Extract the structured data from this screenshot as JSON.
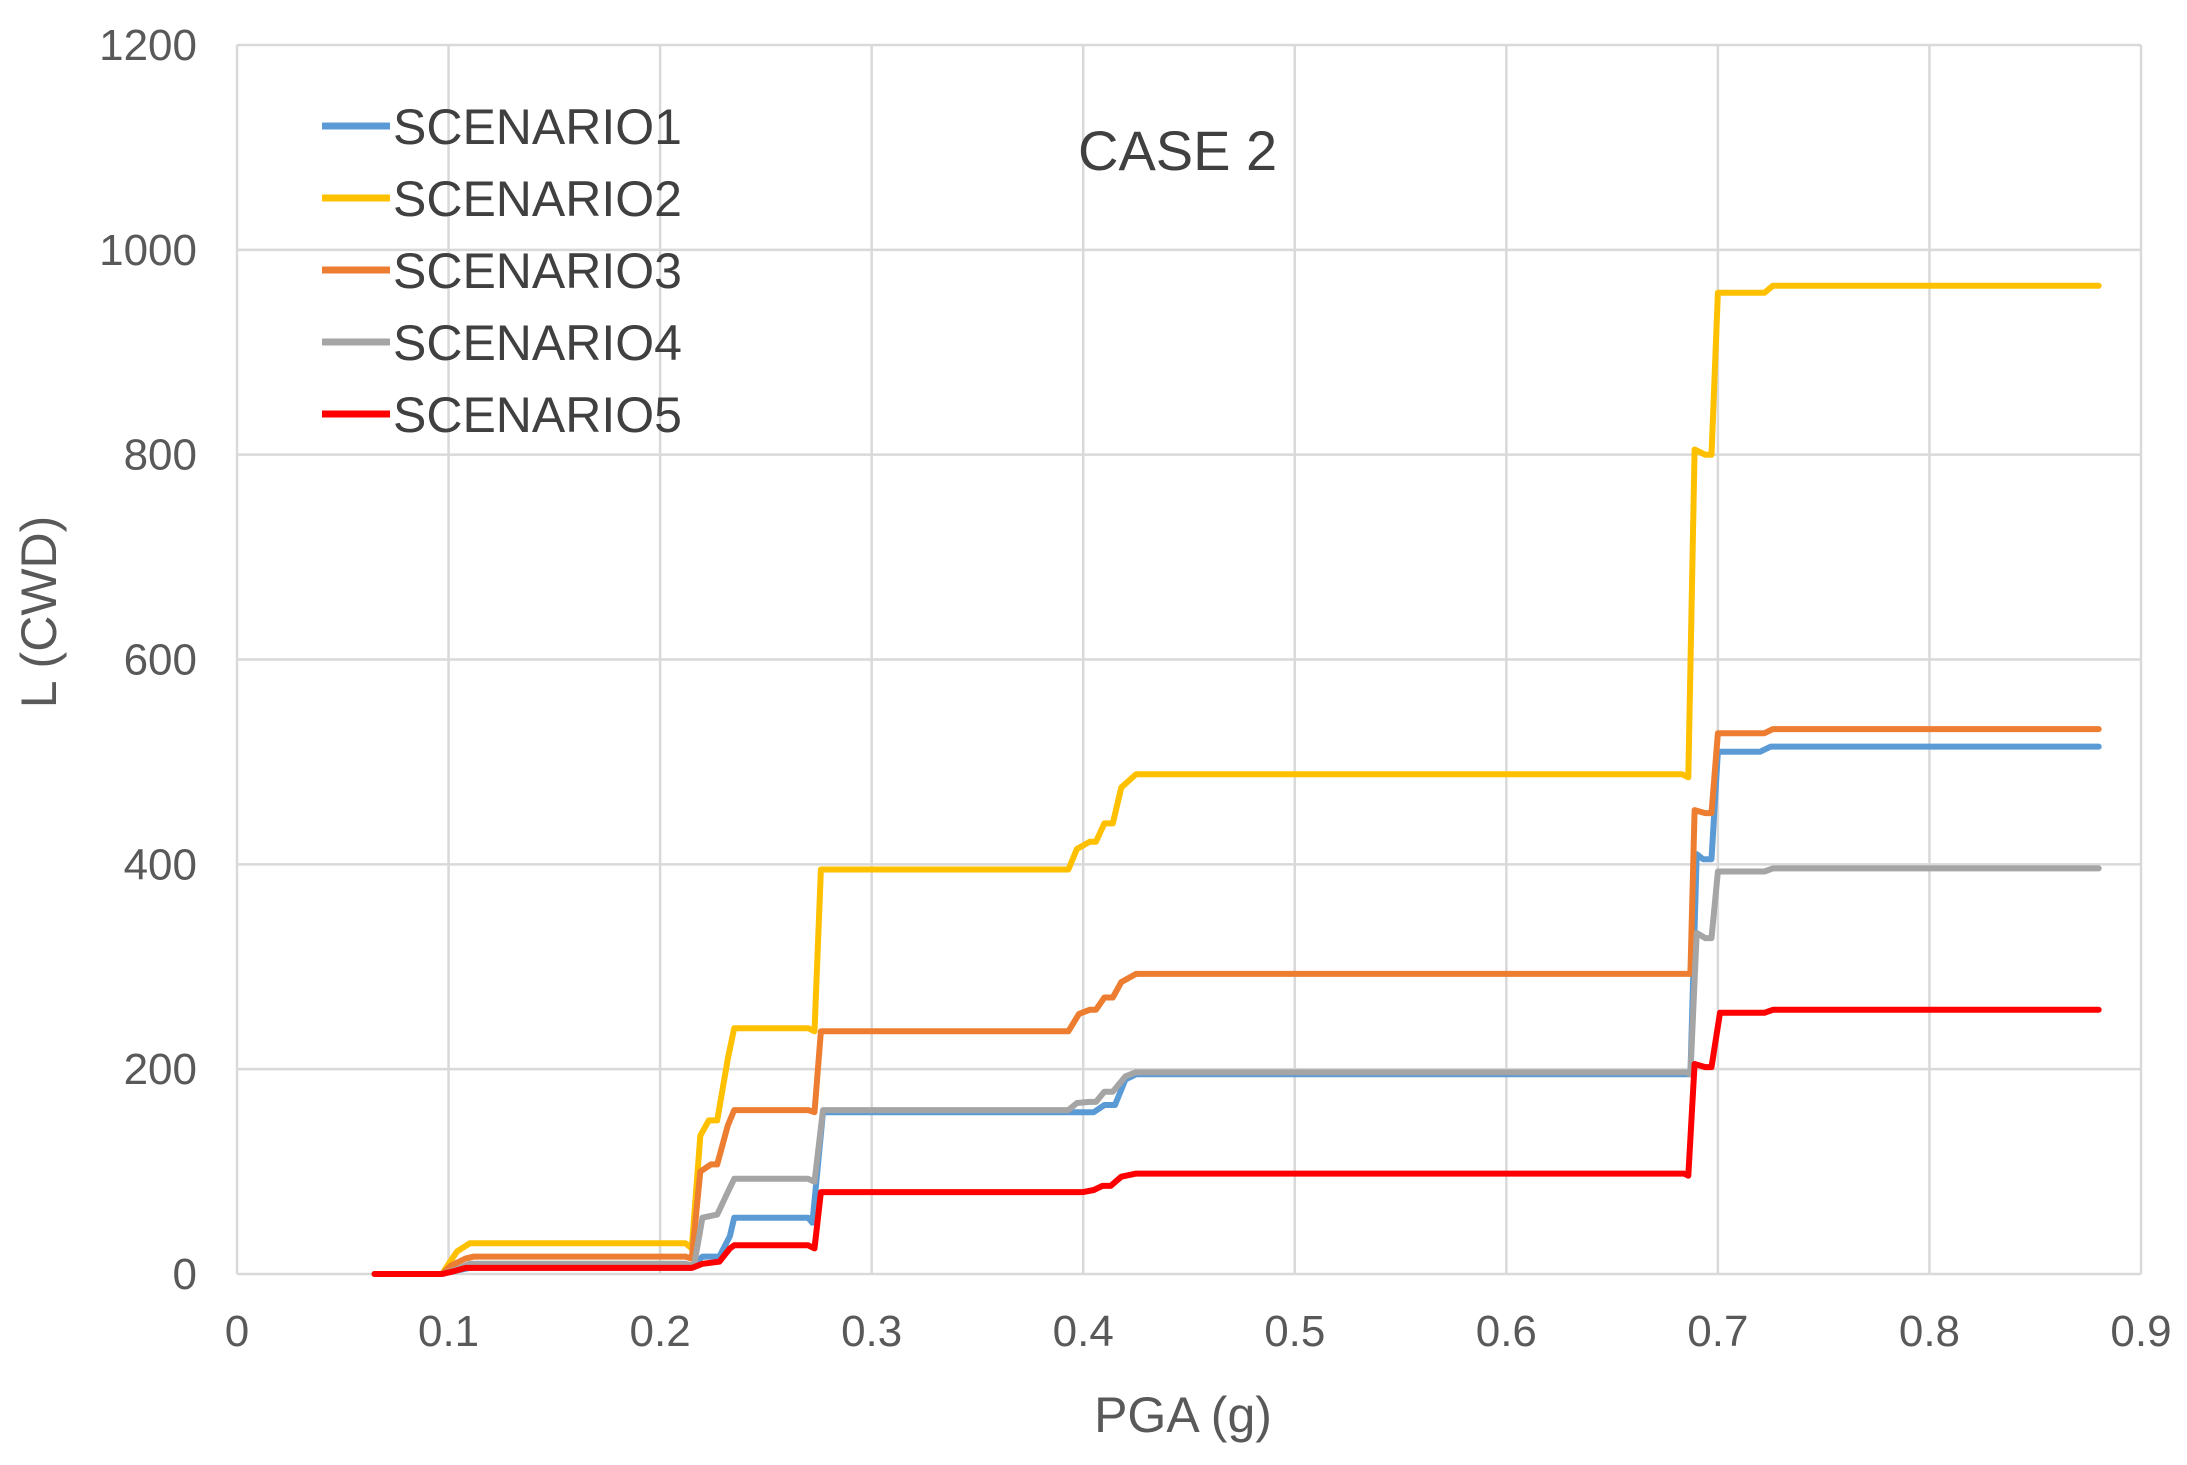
{
  "chart_data": {
    "type": "line",
    "title": "",
    "annotation": "CASE 2",
    "xlabel": "PGA (g)",
    "ylabel": "L (CWD)",
    "xlim": [
      0,
      0.9
    ],
    "ylim": [
      0,
      1200
    ],
    "xticks": [
      0,
      0.1,
      0.2,
      0.3,
      0.4,
      0.5,
      0.6,
      0.7,
      0.8,
      0.9
    ],
    "xtick_labels": [
      "0",
      "0.1",
      "0.2",
      "0.3",
      "0.4",
      "0.5",
      "0.6",
      "0.7",
      "0.8",
      "0.9"
    ],
    "yticks": [
      0,
      200,
      400,
      600,
      800,
      1000,
      1200
    ],
    "ytick_labels": [
      "0",
      "200",
      "400",
      "600",
      "800",
      "1000",
      "1200"
    ],
    "grid": true,
    "legend_position": "top-left",
    "series": [
      {
        "name": "SCENARIO1",
        "color": "#5b9bd5",
        "points": [
          [
            0.065,
            0
          ],
          [
            0.097,
            0
          ],
          [
            0.103,
            3
          ],
          [
            0.11,
            6
          ],
          [
            0.215,
            6
          ],
          [
            0.22,
            17
          ],
          [
            0.228,
            17
          ],
          [
            0.233,
            37
          ],
          [
            0.235,
            55
          ],
          [
            0.27,
            55
          ],
          [
            0.272,
            50
          ],
          [
            0.277,
            158
          ],
          [
            0.395,
            158
          ],
          [
            0.4,
            158
          ],
          [
            0.405,
            158
          ],
          [
            0.41,
            165
          ],
          [
            0.415,
            165
          ],
          [
            0.42,
            190
          ],
          [
            0.425,
            195
          ],
          [
            0.428,
            195
          ],
          [
            0.685,
            195
          ],
          [
            0.687,
            195
          ],
          [
            0.69,
            410
          ],
          [
            0.693,
            405
          ],
          [
            0.697,
            405
          ],
          [
            0.7,
            510
          ],
          [
            0.72,
            510
          ],
          [
            0.725,
            515
          ],
          [
            0.88,
            515
          ]
        ]
      },
      {
        "name": "SCENARIO2",
        "color": "#ffc000",
        "points": [
          [
            0.065,
            0
          ],
          [
            0.097,
            0
          ],
          [
            0.1,
            10
          ],
          [
            0.104,
            22
          ],
          [
            0.11,
            30
          ],
          [
            0.212,
            30
          ],
          [
            0.215,
            25
          ],
          [
            0.219,
            135
          ],
          [
            0.223,
            150
          ],
          [
            0.227,
            150
          ],
          [
            0.232,
            210
          ],
          [
            0.235,
            240
          ],
          [
            0.27,
            240
          ],
          [
            0.273,
            237
          ],
          [
            0.276,
            395
          ],
          [
            0.393,
            395
          ],
          [
            0.397,
            415
          ],
          [
            0.403,
            422
          ],
          [
            0.406,
            422
          ],
          [
            0.41,
            440
          ],
          [
            0.414,
            440
          ],
          [
            0.418,
            475
          ],
          [
            0.425,
            488
          ],
          [
            0.683,
            488
          ],
          [
            0.686,
            485
          ],
          [
            0.689,
            805
          ],
          [
            0.694,
            800
          ],
          [
            0.697,
            800
          ],
          [
            0.7,
            958
          ],
          [
            0.722,
            958
          ],
          [
            0.726,
            965
          ],
          [
            0.88,
            965
          ]
        ]
      },
      {
        "name": "SCENARIO3",
        "color": "#ed7d31",
        "points": [
          [
            0.065,
            0
          ],
          [
            0.097,
            0
          ],
          [
            0.101,
            8
          ],
          [
            0.108,
            15
          ],
          [
            0.112,
            17
          ],
          [
            0.212,
            17
          ],
          [
            0.215,
            15
          ],
          [
            0.219,
            100
          ],
          [
            0.224,
            107
          ],
          [
            0.227,
            107
          ],
          [
            0.232,
            145
          ],
          [
            0.235,
            160
          ],
          [
            0.27,
            160
          ],
          [
            0.273,
            158
          ],
          [
            0.276,
            237
          ],
          [
            0.393,
            237
          ],
          [
            0.398,
            254
          ],
          [
            0.403,
            258
          ],
          [
            0.406,
            258
          ],
          [
            0.41,
            270
          ],
          [
            0.414,
            270
          ],
          [
            0.418,
            285
          ],
          [
            0.425,
            293
          ],
          [
            0.685,
            293
          ],
          [
            0.687,
            293
          ],
          [
            0.689,
            453
          ],
          [
            0.694,
            450
          ],
          [
            0.697,
            450
          ],
          [
            0.7,
            528
          ],
          [
            0.722,
            528
          ],
          [
            0.726,
            532
          ],
          [
            0.88,
            532
          ]
        ]
      },
      {
        "name": "SCENARIO4",
        "color": "#a5a5a5",
        "points": [
          [
            0.065,
            0
          ],
          [
            0.097,
            0
          ],
          [
            0.103,
            4
          ],
          [
            0.11,
            10
          ],
          [
            0.212,
            10
          ],
          [
            0.216,
            8
          ],
          [
            0.22,
            55
          ],
          [
            0.227,
            58
          ],
          [
            0.232,
            80
          ],
          [
            0.235,
            93
          ],
          [
            0.27,
            93
          ],
          [
            0.273,
            90
          ],
          [
            0.277,
            160
          ],
          [
            0.393,
            160
          ],
          [
            0.397,
            167
          ],
          [
            0.403,
            168
          ],
          [
            0.406,
            168
          ],
          [
            0.41,
            178
          ],
          [
            0.414,
            178
          ],
          [
            0.42,
            193
          ],
          [
            0.425,
            197
          ],
          [
            0.685,
            197
          ],
          [
            0.687,
            195
          ],
          [
            0.69,
            333
          ],
          [
            0.694,
            328
          ],
          [
            0.697,
            328
          ],
          [
            0.7,
            393
          ],
          [
            0.722,
            393
          ],
          [
            0.726,
            396
          ],
          [
            0.88,
            396
          ]
        ]
      },
      {
        "name": "SCENARIO5",
        "color": "#ff0000",
        "points": [
          [
            0.065,
            0
          ],
          [
            0.097,
            0
          ],
          [
            0.103,
            3
          ],
          [
            0.108,
            6
          ],
          [
            0.215,
            6
          ],
          [
            0.22,
            10
          ],
          [
            0.228,
            12
          ],
          [
            0.233,
            25
          ],
          [
            0.235,
            28
          ],
          [
            0.27,
            28
          ],
          [
            0.273,
            25
          ],
          [
            0.276,
            80
          ],
          [
            0.4,
            80
          ],
          [
            0.405,
            82
          ],
          [
            0.409,
            86
          ],
          [
            0.413,
            86
          ],
          [
            0.418,
            95
          ],
          [
            0.425,
            98
          ],
          [
            0.684,
            98
          ],
          [
            0.686,
            96
          ],
          [
            0.689,
            205
          ],
          [
            0.694,
            202
          ],
          [
            0.697,
            202
          ],
          [
            0.701,
            255
          ],
          [
            0.722,
            255
          ],
          [
            0.726,
            258
          ],
          [
            0.88,
            258
          ]
        ]
      }
    ]
  }
}
